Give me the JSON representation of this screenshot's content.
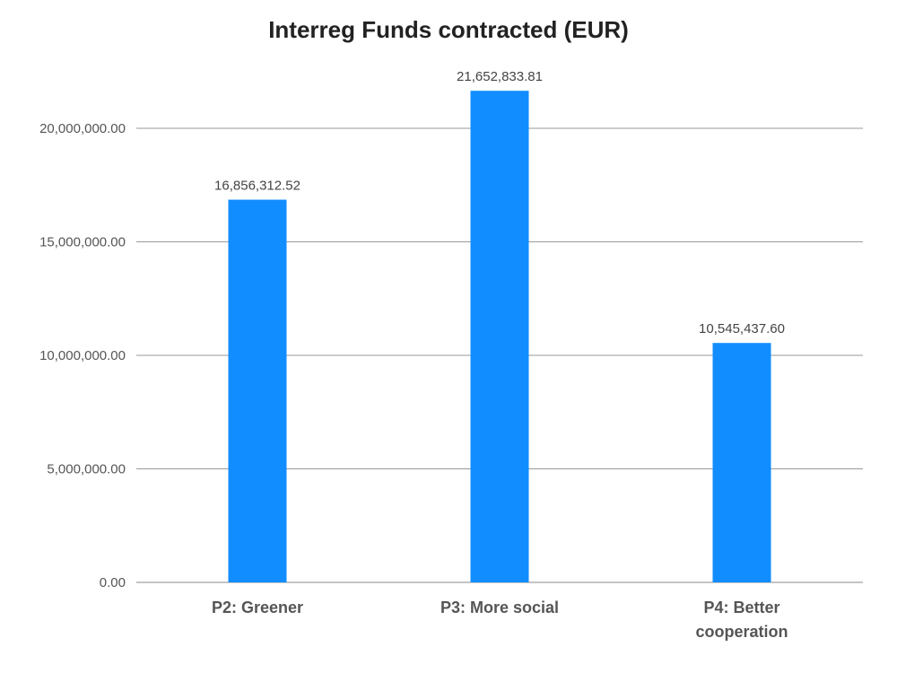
{
  "chart_data": {
    "type": "bar",
    "title": "Interreg Funds contracted (EUR)",
    "categories": [
      "P2: Greener",
      "P3: More social",
      "P4: Better cooperation"
    ],
    "category_lines": [
      [
        "P2: Greener"
      ],
      [
        "P3: More social"
      ],
      [
        "P4: Better",
        "cooperation"
      ]
    ],
    "values": [
      16856312.52,
      21652833.81,
      10545437.6
    ],
    "value_labels": [
      "16,856,312.52",
      "21,652,833.81",
      "10,545,437.60"
    ],
    "ylim": [
      0,
      20000000
    ],
    "yticks": [
      0,
      5000000,
      10000000,
      15000000,
      20000000
    ],
    "ytick_labels": [
      "0.00",
      "5,000,000.00",
      "10,000,000.00",
      "15,000,000.00",
      "20,000,000.00"
    ],
    "grid": true,
    "bar_color": "#118DFF",
    "xlabel": "",
    "ylabel": ""
  }
}
